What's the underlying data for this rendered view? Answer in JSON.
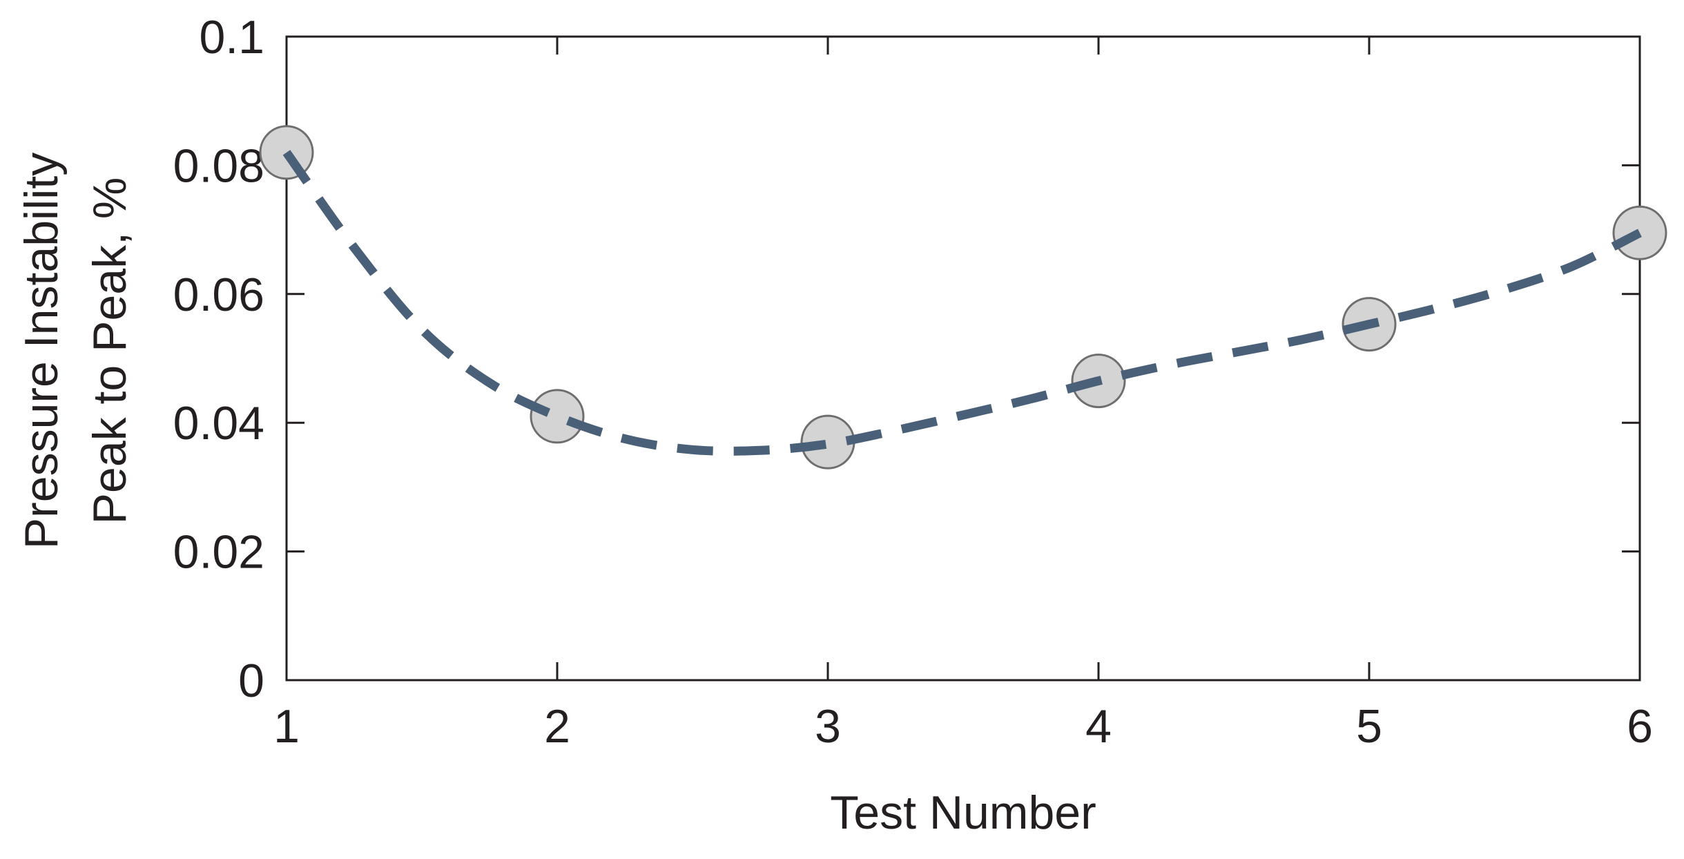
{
  "chart_data": {
    "type": "scatter",
    "title": "",
    "xlabel": "Test Number",
    "ylabel_lines": [
      "Pressure Instability",
      "Peak to Peak, %"
    ],
    "xlim": [
      1,
      6
    ],
    "ylim": [
      0,
      0.1
    ],
    "x_ticks": [
      1,
      2,
      3,
      4,
      5,
      6
    ],
    "x_tick_labels": [
      "1",
      "2",
      "3",
      "4",
      "5",
      "6"
    ],
    "y_ticks": [
      0,
      0.02,
      0.04,
      0.06,
      0.08,
      0.1
    ],
    "y_tick_labels": [
      "0",
      "0.02",
      "0.04",
      "0.06",
      "0.08",
      "0.1"
    ],
    "grid": false,
    "points": {
      "x": [
        1,
        2,
        3,
        4,
        5,
        6
      ],
      "y": [
        0.082,
        0.041,
        0.037,
        0.0465,
        0.0553,
        0.0695
      ]
    },
    "trend_line": {
      "style": "dashed",
      "x": [
        1,
        1.25,
        1.5,
        1.75,
        2,
        2.25,
        2.5,
        2.75,
        3,
        3.25,
        3.5,
        3.75,
        4,
        4.25,
        4.5,
        4.75,
        5,
        5.25,
        5.5,
        5.75,
        6
      ],
      "y": [
        0.082,
        0.0672,
        0.0545,
        0.0462,
        0.041,
        0.0375,
        0.0358,
        0.0357,
        0.0367,
        0.0388,
        0.0412,
        0.0437,
        0.0465,
        0.0489,
        0.0509,
        0.0529,
        0.0553,
        0.0578,
        0.0607,
        0.0643,
        0.0695
      ]
    },
    "colors": {
      "line": "#4a6078",
      "marker_fill": "#d4d4d4",
      "marker_stroke": "#6e6e6e",
      "axis": "#231f20",
      "text": "#231f20"
    }
  }
}
